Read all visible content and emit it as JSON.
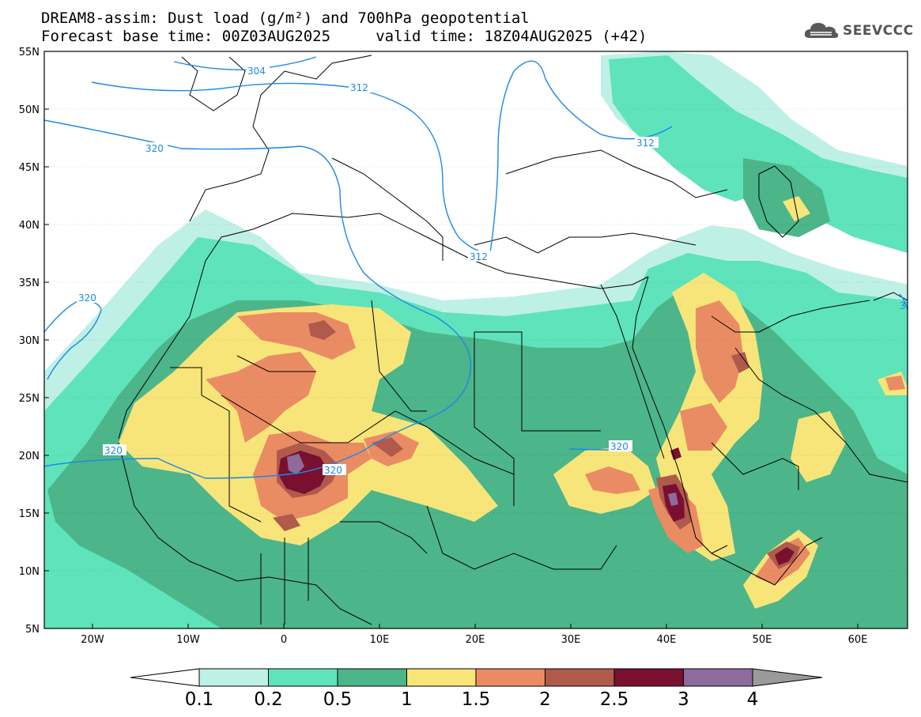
{
  "header": {
    "title_line1": "DREAM8-assim: Dust load (g/m²) and 700hPa geopotential",
    "title_line2": "Forecast base time: 00Z03AUG2025     valid time: 18Z04AUG2025 (+42)"
  },
  "logo": {
    "text": "SEEVCCC",
    "icon": "cloud-logo-icon"
  },
  "axes": {
    "lat_labels": [
      "55N",
      "50N",
      "45N",
      "40N",
      "35N",
      "30N",
      "25N",
      "20N",
      "15N",
      "10N",
      "5N"
    ],
    "lon_labels": [
      "20W",
      "10W",
      "0",
      "10E",
      "20E",
      "30E",
      "40E",
      "50E",
      "60E"
    ]
  },
  "colorbar": {
    "labels": [
      "0.1",
      "0.2",
      "0.5",
      "1",
      "1.5",
      "2",
      "2.5",
      "3",
      "4"
    ],
    "colors": [
      "#bff0e6",
      "#5fe3bb",
      "#4cb58a",
      "#f7e57a",
      "#ea8c63",
      "#b05a4c",
      "#7a1030",
      "#8e6b9c"
    ],
    "under_color": "#ffffff",
    "over_color": "#9a9a9a"
  },
  "contour_labels": [
    "304",
    "312",
    "312",
    "312",
    "320",
    "320",
    "320",
    "320",
    "320",
    "3"
  ],
  "palette": {
    "contour": "#1e88e5",
    "border": "#000000"
  }
}
